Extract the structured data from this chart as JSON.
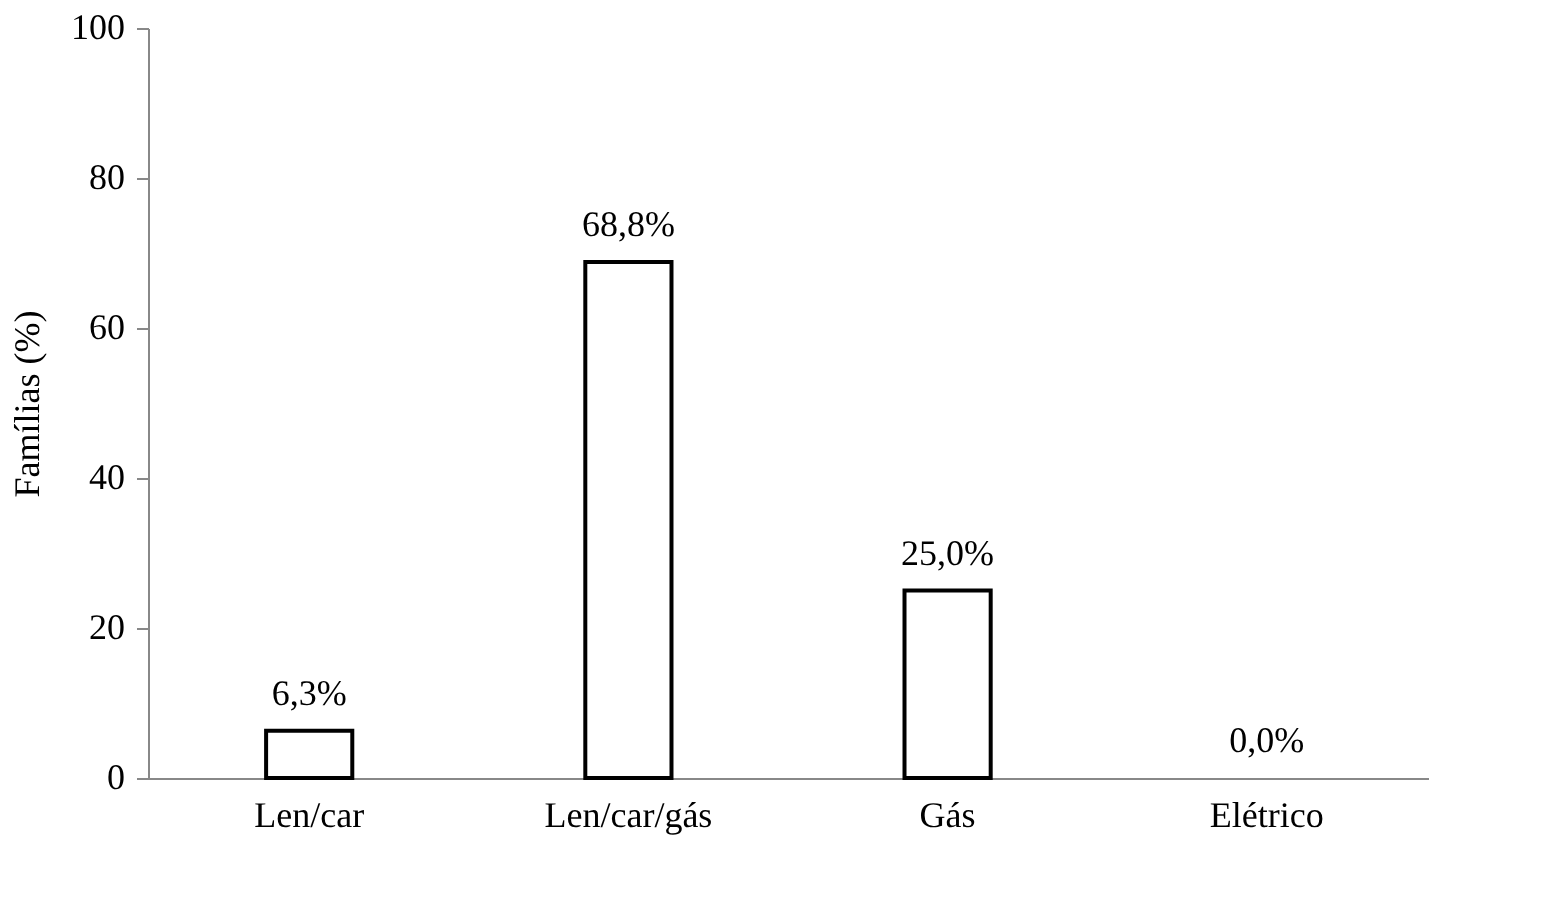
{
  "chart_data": {
    "type": "bar",
    "ylabel": "Famílias (%)",
    "categories": [
      "Len/car",
      "Len/car/gás",
      "Gás",
      "Elétrico"
    ],
    "values": [
      6.3,
      68.8,
      25.0,
      0.0
    ],
    "value_labels": [
      "6,3%",
      "68,8%",
      "25,0%",
      "0,0%"
    ],
    "color": "#ffffff",
    "ylim": [
      0,
      100
    ],
    "yticks": [
      0,
      20,
      40,
      60,
      80,
      100
    ],
    "grid": false
  }
}
